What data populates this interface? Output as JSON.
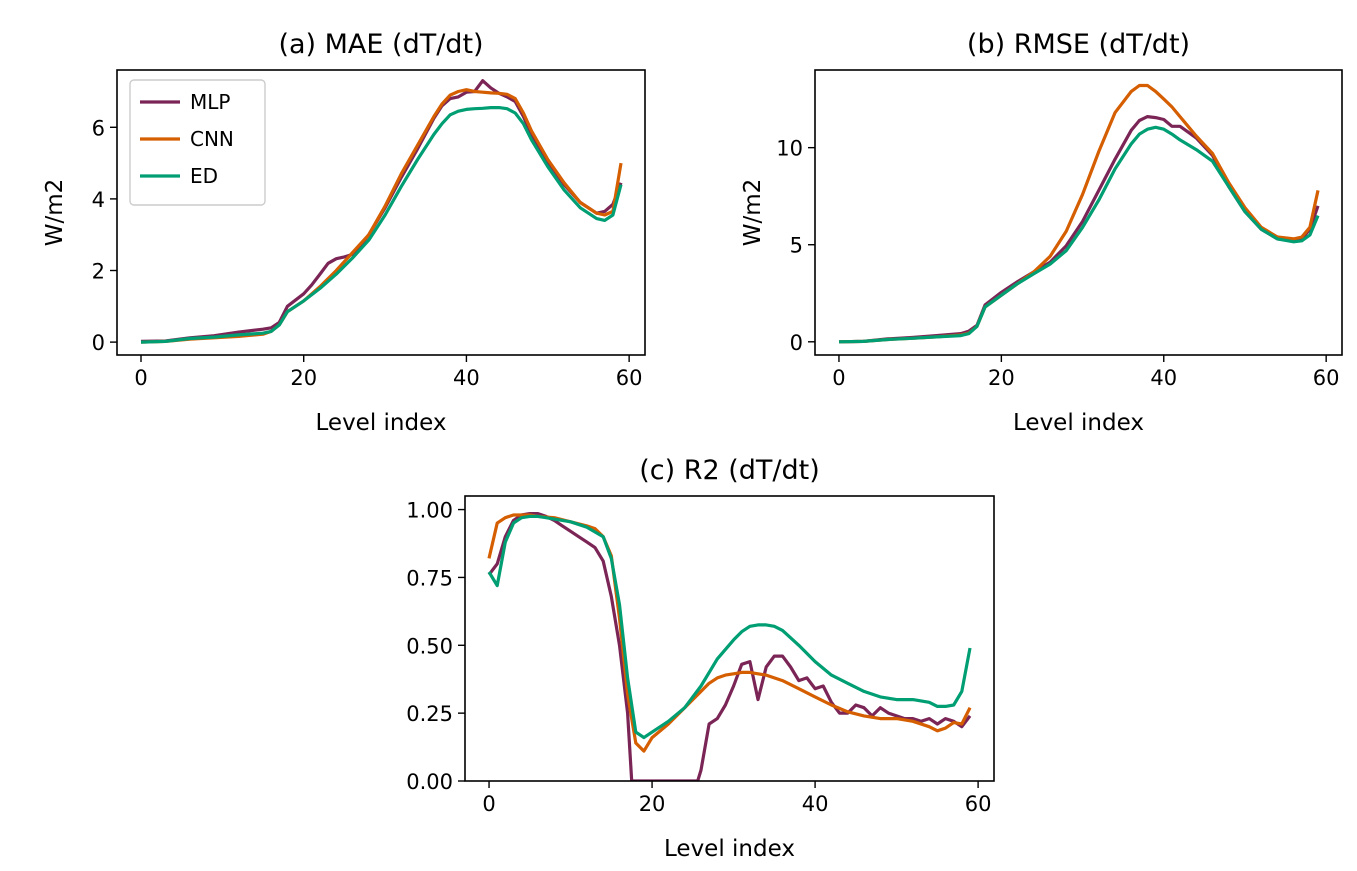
{
  "chart_data": [
    {
      "type": "line",
      "title": "(a) MAE (dT/dt)",
      "xlabel": "Level index",
      "ylabel": "W/m2",
      "xlim": [
        -2.95,
        61.95
      ],
      "ylim": [
        -0.36,
        7.6
      ],
      "xticks": [
        0,
        20,
        40,
        60
      ],
      "yticks": [
        0,
        2,
        4,
        6
      ],
      "legend": "top-left",
      "series": [
        {
          "name": "MLP",
          "color": "#7b2557",
          "x": [
            0,
            3,
            6,
            9,
            12,
            15,
            16,
            17,
            18,
            20,
            21,
            22,
            23,
            24,
            25,
            26,
            27,
            28,
            30,
            32,
            34,
            36,
            37,
            38,
            39,
            40,
            41,
            42,
            43,
            44,
            45,
            46,
            47,
            48,
            50,
            52,
            54,
            56,
            57,
            58,
            59
          ],
          "y": [
            0.02,
            0.03,
            0.12,
            0.18,
            0.28,
            0.36,
            0.4,
            0.55,
            1.0,
            1.35,
            1.6,
            1.9,
            2.2,
            2.33,
            2.38,
            2.45,
            2.7,
            3.0,
            3.75,
            4.6,
            5.4,
            6.25,
            6.6,
            6.8,
            6.85,
            6.98,
            7.0,
            7.3,
            7.1,
            6.95,
            6.85,
            6.72,
            6.3,
            5.8,
            5.05,
            4.4,
            3.9,
            3.6,
            3.65,
            3.85,
            4.45
          ]
        },
        {
          "name": "CNN",
          "color": "#d55e00",
          "x": [
            0,
            3,
            6,
            9,
            12,
            15,
            16,
            17,
            18,
            20,
            22,
            24,
            26,
            28,
            30,
            32,
            34,
            36,
            37,
            38,
            39,
            40,
            41,
            42,
            43,
            44,
            45,
            46,
            47,
            48,
            50,
            52,
            54,
            56,
            57,
            58,
            59
          ],
          "y": [
            0.0,
            0.02,
            0.08,
            0.12,
            0.16,
            0.22,
            0.3,
            0.48,
            0.85,
            1.15,
            1.55,
            2.0,
            2.5,
            3.0,
            3.8,
            4.7,
            5.5,
            6.3,
            6.65,
            6.9,
            7.0,
            7.05,
            7.0,
            6.98,
            6.96,
            6.95,
            6.92,
            6.8,
            6.4,
            5.9,
            5.1,
            4.45,
            3.9,
            3.6,
            3.55,
            3.65,
            5.0
          ]
        },
        {
          "name": "ED",
          "color": "#009e73",
          "x": [
            0,
            3,
            6,
            9,
            12,
            15,
            16,
            17,
            18,
            20,
            22,
            24,
            26,
            28,
            30,
            32,
            34,
            36,
            37,
            38,
            39,
            40,
            41,
            42,
            43,
            44,
            45,
            46,
            47,
            48,
            50,
            52,
            54,
            56,
            57,
            58,
            59
          ],
          "y": [
            0.0,
            0.02,
            0.1,
            0.14,
            0.2,
            0.25,
            0.3,
            0.48,
            0.85,
            1.15,
            1.5,
            1.9,
            2.35,
            2.85,
            3.55,
            4.35,
            5.1,
            5.8,
            6.1,
            6.35,
            6.45,
            6.5,
            6.52,
            6.53,
            6.55,
            6.55,
            6.52,
            6.4,
            6.1,
            5.65,
            4.9,
            4.25,
            3.75,
            3.45,
            3.4,
            3.55,
            4.4
          ]
        }
      ]
    },
    {
      "type": "line",
      "title": "(b) RMSE (dT/dt)",
      "xlabel": "Level index",
      "ylabel": "W/m2",
      "xlim": [
        -2.95,
        61.95
      ],
      "ylim": [
        -0.68,
        14.0
      ],
      "xticks": [
        0,
        20,
        40,
        60
      ],
      "yticks": [
        0,
        5,
        10
      ],
      "series": [
        {
          "name": "MLP",
          "color": "#7b2557",
          "x": [
            0,
            3,
            6,
            9,
            12,
            15,
            16,
            17,
            18,
            20,
            22,
            24,
            26,
            28,
            30,
            32,
            34,
            36,
            37,
            38,
            39,
            40,
            41,
            42,
            43,
            44,
            46,
            48,
            50,
            52,
            54,
            56,
            57,
            58,
            59
          ],
          "y": [
            0.0,
            0.02,
            0.15,
            0.22,
            0.32,
            0.42,
            0.55,
            0.85,
            1.9,
            2.55,
            3.1,
            3.6,
            4.1,
            4.95,
            6.2,
            7.8,
            9.4,
            10.9,
            11.4,
            11.6,
            11.55,
            11.45,
            11.1,
            11.1,
            10.8,
            10.5,
            9.6,
            8.0,
            6.7,
            5.8,
            5.3,
            5.2,
            5.3,
            5.8,
            7.0
          ]
        },
        {
          "name": "CNN",
          "color": "#d55e00",
          "x": [
            0,
            3,
            6,
            9,
            12,
            15,
            16,
            17,
            18,
            20,
            22,
            24,
            26,
            28,
            30,
            32,
            34,
            36,
            37,
            38,
            39,
            40,
            41,
            42,
            43,
            44,
            46,
            48,
            50,
            52,
            54,
            56,
            57,
            58,
            59
          ],
          "y": [
            0.0,
            0.02,
            0.12,
            0.18,
            0.25,
            0.35,
            0.45,
            0.8,
            1.8,
            2.4,
            3.0,
            3.6,
            4.4,
            5.7,
            7.6,
            9.8,
            11.8,
            12.9,
            13.2,
            13.2,
            12.9,
            12.5,
            12.1,
            11.6,
            11.1,
            10.6,
            9.7,
            8.2,
            6.9,
            5.9,
            5.4,
            5.3,
            5.4,
            5.9,
            7.8
          ]
        },
        {
          "name": "ED",
          "color": "#009e73",
          "x": [
            0,
            3,
            6,
            9,
            12,
            15,
            16,
            17,
            18,
            20,
            22,
            24,
            26,
            28,
            30,
            32,
            34,
            36,
            37,
            38,
            39,
            40,
            41,
            42,
            43,
            44,
            46,
            48,
            50,
            52,
            54,
            56,
            57,
            58,
            59
          ],
          "y": [
            0.0,
            0.02,
            0.12,
            0.18,
            0.25,
            0.32,
            0.42,
            0.8,
            1.8,
            2.4,
            3.0,
            3.5,
            4.0,
            4.7,
            5.9,
            7.3,
            8.9,
            10.2,
            10.7,
            10.95,
            11.05,
            10.95,
            10.7,
            10.4,
            10.15,
            9.9,
            9.3,
            8.0,
            6.7,
            5.8,
            5.3,
            5.15,
            5.2,
            5.5,
            6.5
          ]
        }
      ]
    },
    {
      "type": "line",
      "title": "(c) R2 (dT/dt)",
      "xlabel": "Level index",
      "ylabel": "",
      "xlim": [
        -2.95,
        61.95
      ],
      "ylim": [
        0.0,
        1.05
      ],
      "xticks": [
        0,
        20,
        40,
        60
      ],
      "yticks": [
        "0.00",
        "0.25",
        "0.50",
        "0.75",
        "1.00"
      ],
      "series": [
        {
          "name": "MLP",
          "color": "#7b2557",
          "x": [
            0,
            1,
            2,
            3,
            4,
            5,
            6,
            7,
            8,
            9,
            10,
            11,
            12,
            13,
            14,
            15,
            16,
            17,
            17.5,
            25.6,
            26,
            27,
            28,
            29,
            30,
            31,
            32,
            33,
            34,
            35,
            36,
            37,
            38,
            39,
            40,
            41,
            42,
            43,
            44,
            45,
            46,
            47,
            48,
            49,
            50,
            51,
            52,
            53,
            54,
            55,
            56,
            57,
            58,
            59
          ],
          "y": [
            0.76,
            0.8,
            0.9,
            0.96,
            0.98,
            0.985,
            0.985,
            0.975,
            0.96,
            0.94,
            0.92,
            0.9,
            0.88,
            0.86,
            0.81,
            0.68,
            0.5,
            0.25,
            0.0,
            0.0,
            0.04,
            0.21,
            0.23,
            0.28,
            0.35,
            0.43,
            0.44,
            0.3,
            0.42,
            0.46,
            0.46,
            0.42,
            0.37,
            0.38,
            0.34,
            0.35,
            0.29,
            0.25,
            0.25,
            0.28,
            0.27,
            0.24,
            0.27,
            0.25,
            0.24,
            0.23,
            0.23,
            0.22,
            0.23,
            0.21,
            0.23,
            0.22,
            0.2,
            0.24
          ]
        },
        {
          "name": "CNN",
          "color": "#d55e00",
          "x": [
            0,
            1,
            2,
            3,
            4,
            5,
            6,
            8,
            10,
            12,
            13,
            14,
            15,
            16,
            17,
            18,
            19,
            20,
            22,
            24,
            26,
            27,
            28,
            29,
            30,
            31,
            32,
            33,
            34,
            35,
            36,
            38,
            40,
            42,
            44,
            46,
            48,
            50,
            52,
            54,
            55,
            56,
            57,
            58,
            59
          ],
          "y": [
            0.82,
            0.95,
            0.97,
            0.98,
            0.98,
            0.98,
            0.975,
            0.97,
            0.955,
            0.94,
            0.93,
            0.9,
            0.83,
            0.6,
            0.32,
            0.14,
            0.11,
            0.16,
            0.21,
            0.27,
            0.33,
            0.36,
            0.38,
            0.39,
            0.395,
            0.4,
            0.4,
            0.395,
            0.39,
            0.38,
            0.37,
            0.34,
            0.31,
            0.28,
            0.255,
            0.24,
            0.23,
            0.23,
            0.22,
            0.2,
            0.185,
            0.195,
            0.215,
            0.21,
            0.27
          ]
        },
        {
          "name": "ED",
          "color": "#009e73",
          "x": [
            0,
            1,
            2,
            3,
            4,
            5,
            6,
            7,
            8,
            10,
            12,
            14,
            15,
            16,
            17,
            18,
            19,
            20,
            22,
            24,
            26,
            28,
            30,
            31,
            32,
            33,
            34,
            35,
            36,
            38,
            40,
            42,
            44,
            46,
            48,
            50,
            52,
            54,
            55,
            56,
            57,
            58,
            59
          ],
          "y": [
            0.77,
            0.72,
            0.88,
            0.95,
            0.97,
            0.975,
            0.975,
            0.97,
            0.965,
            0.955,
            0.935,
            0.9,
            0.82,
            0.65,
            0.38,
            0.18,
            0.16,
            0.18,
            0.22,
            0.27,
            0.35,
            0.45,
            0.52,
            0.55,
            0.57,
            0.575,
            0.575,
            0.57,
            0.555,
            0.5,
            0.44,
            0.39,
            0.36,
            0.33,
            0.31,
            0.3,
            0.3,
            0.29,
            0.275,
            0.275,
            0.28,
            0.33,
            0.49
          ]
        }
      ]
    }
  ]
}
